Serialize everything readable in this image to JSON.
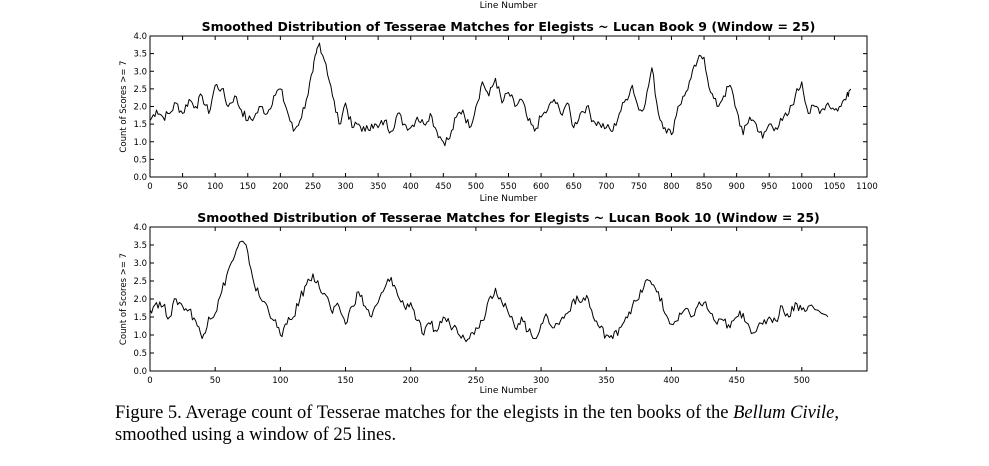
{
  "top_label": "Line Number",
  "caption": {
    "prefix": "Figure 5. Average count of Tesserae matches for the elegists in the ten books of the ",
    "italic1": "Bellum Civile",
    "suffix": ", smoothed using a window of 25 lines."
  },
  "colors": {
    "line": "#000000",
    "axes": "#000000",
    "background": "#ffffff"
  },
  "chart_data": [
    {
      "type": "line",
      "title": "Smoothed Distribution of Tesserae Matches for Elegists ~ Lucan Book 9 (Window = 25)",
      "xlabel": "Line Number",
      "ylabel": "Count of Scores >= 7",
      "xlim": [
        0,
        1100
      ],
      "ylim": [
        0.0,
        4.0
      ],
      "xticks": [
        0,
        50,
        100,
        150,
        200,
        250,
        300,
        350,
        400,
        450,
        500,
        550,
        600,
        650,
        700,
        750,
        800,
        850,
        900,
        950,
        1000,
        1050,
        1100
      ],
      "yticks": [
        "0.0",
        "0.5",
        "1.0",
        "1.5",
        "2.0",
        "2.5",
        "3.0",
        "3.5",
        "4.0"
      ],
      "grid": false,
      "series": [
        {
          "x": [
            0,
            10,
            20,
            30,
            40,
            50,
            60,
            70,
            80,
            90,
            100,
            110,
            120,
            130,
            140,
            150,
            160,
            170,
            180,
            190,
            200,
            210,
            220,
            230,
            240,
            250,
            255,
            260,
            270,
            280,
            290,
            300,
            310,
            320,
            330,
            340,
            350,
            360,
            370,
            380,
            390,
            400,
            410,
            420,
            430,
            440,
            450,
            460,
            470,
            480,
            490,
            500,
            510,
            520,
            530,
            540,
            550,
            560,
            570,
            580,
            590,
            600,
            610,
            620,
            630,
            640,
            650,
            660,
            670,
            680,
            690,
            700,
            710,
            720,
            730,
            740,
            750,
            760,
            770,
            780,
            790,
            800,
            810,
            820,
            830,
            840,
            850,
            860,
            870,
            880,
            890,
            900,
            910,
            920,
            930,
            940,
            950,
            960,
            970,
            980,
            990,
            1000,
            1010,
            1020,
            1030,
            1040,
            1050,
            1060,
            1070,
            1075
          ],
          "y": [
            1.6,
            1.9,
            1.7,
            1.8,
            2.1,
            1.8,
            2.2,
            2.0,
            2.3,
            1.8,
            2.6,
            2.5,
            2.0,
            2.3,
            1.9,
            1.6,
            1.7,
            2.0,
            1.8,
            2.3,
            2.5,
            1.9,
            1.3,
            1.6,
            2.2,
            3.0,
            3.5,
            3.8,
            3.2,
            2.3,
            1.5,
            2.1,
            1.4,
            1.5,
            1.3,
            1.5,
            1.4,
            1.6,
            1.3,
            1.8,
            1.5,
            1.4,
            1.7,
            1.5,
            1.8,
            1.3,
            1.0,
            1.1,
            1.7,
            1.9,
            1.4,
            2.0,
            2.7,
            2.3,
            2.8,
            2.1,
            2.4,
            2.0,
            2.2,
            1.6,
            1.3,
            1.7,
            1.9,
            2.2,
            1.8,
            2.1,
            1.4,
            1.8,
            2.0,
            1.6,
            1.5,
            1.4,
            1.3,
            1.8,
            2.2,
            2.6,
            1.9,
            2.1,
            3.1,
            1.8,
            1.4,
            1.2,
            2.0,
            2.3,
            2.8,
            3.3,
            3.4,
            2.4,
            2.0,
            2.3,
            2.6,
            1.9,
            1.2,
            1.7,
            1.5,
            1.1,
            1.5,
            1.4,
            1.6,
            1.8,
            2.3,
            2.7,
            1.8,
            2.0,
            1.9,
            2.1,
            1.9,
            2.0,
            2.4,
            2.5
          ]
        }
      ]
    },
    {
      "type": "line",
      "title": "Smoothed Distribution of Tesserae Matches for Elegists ~ Lucan Book 10 (Window = 25)",
      "xlabel": "Line Number",
      "ylabel": "Count of Scores >= 7",
      "xlim": [
        0,
        550
      ],
      "ylim": [
        0.0,
        4.0
      ],
      "xticks": [
        0,
        50,
        100,
        150,
        200,
        250,
        300,
        350,
        400,
        450,
        500
      ],
      "yticks": [
        "0.0",
        "0.5",
        "1.0",
        "1.5",
        "2.0",
        "2.5",
        "3.0",
        "3.5",
        "4.0"
      ],
      "grid": false,
      "series": [
        {
          "x": [
            0,
            5,
            10,
            15,
            20,
            25,
            30,
            35,
            40,
            45,
            50,
            55,
            60,
            65,
            70,
            75,
            80,
            85,
            90,
            95,
            100,
            105,
            110,
            115,
            120,
            125,
            130,
            135,
            140,
            145,
            150,
            155,
            160,
            165,
            170,
            175,
            180,
            185,
            190,
            195,
            200,
            205,
            210,
            215,
            220,
            225,
            230,
            235,
            240,
            245,
            250,
            255,
            260,
            265,
            270,
            275,
            280,
            285,
            290,
            295,
            300,
            305,
            310,
            315,
            320,
            325,
            330,
            335,
            340,
            345,
            350,
            355,
            360,
            365,
            370,
            375,
            380,
            385,
            390,
            395,
            400,
            405,
            410,
            415,
            420,
            425,
            430,
            435,
            440,
            445,
            450,
            455,
            460,
            465,
            470,
            475,
            480,
            485,
            490,
            495,
            500,
            505,
            515,
            520
          ],
          "y": [
            1.7,
            1.9,
            1.8,
            1.5,
            2.0,
            1.8,
            1.7,
            1.4,
            0.9,
            1.5,
            1.6,
            2.2,
            2.8,
            3.2,
            3.6,
            3.3,
            2.4,
            2.0,
            1.8,
            1.4,
            1.0,
            1.3,
            1.5,
            2.0,
            2.4,
            2.7,
            2.3,
            2.1,
            1.6,
            1.8,
            1.3,
            1.8,
            2.2,
            1.8,
            1.5,
            1.9,
            2.3,
            2.6,
            2.1,
            1.8,
            1.9,
            1.4,
            1.0,
            1.3,
            1.1,
            1.5,
            1.3,
            1.2,
            1.0,
            0.9,
            1.2,
            1.4,
            2.0,
            2.3,
            1.9,
            1.6,
            1.2,
            1.5,
            1.1,
            0.9,
            1.3,
            1.5,
            1.2,
            1.4,
            1.6,
            2.0,
            1.9,
            2.1,
            1.5,
            1.2,
            1.0,
            0.9,
            1.2,
            1.5,
            1.8,
            2.0,
            2.5,
            2.4,
            2.2,
            1.6,
            1.3,
            1.4,
            1.7,
            1.5,
            1.8,
            1.9,
            1.6,
            1.3,
            1.4,
            1.2,
            1.5,
            1.6,
            1.2,
            1.1,
            1.3,
            1.5,
            1.4,
            1.8,
            1.5,
            1.9,
            1.7,
            1.8,
            1.6,
            1.5
          ]
        }
      ]
    }
  ]
}
